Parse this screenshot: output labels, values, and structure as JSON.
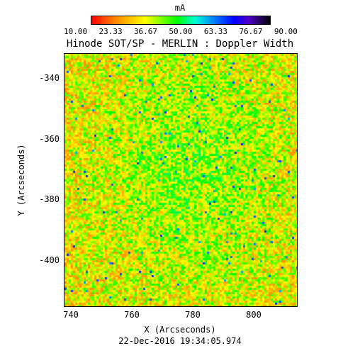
{
  "colorbar": {
    "unit": "mA",
    "ticks": [
      "10.00",
      "23.33",
      "36.67",
      "50.00",
      "63.33",
      "76.67",
      "90.00"
    ]
  },
  "title": "Hinode SOT/SP - MERLIN : Doppler Width",
  "axes": {
    "xlabel": "X (Arcseconds)",
    "ylabel": "Y (Arcseconds)",
    "xticks": [
      "740",
      "760",
      "780",
      "800"
    ],
    "yticks": [
      "-340",
      "-360",
      "-380",
      "-400"
    ]
  },
  "date": "22-Dec-2016 19:34:05.974"
}
